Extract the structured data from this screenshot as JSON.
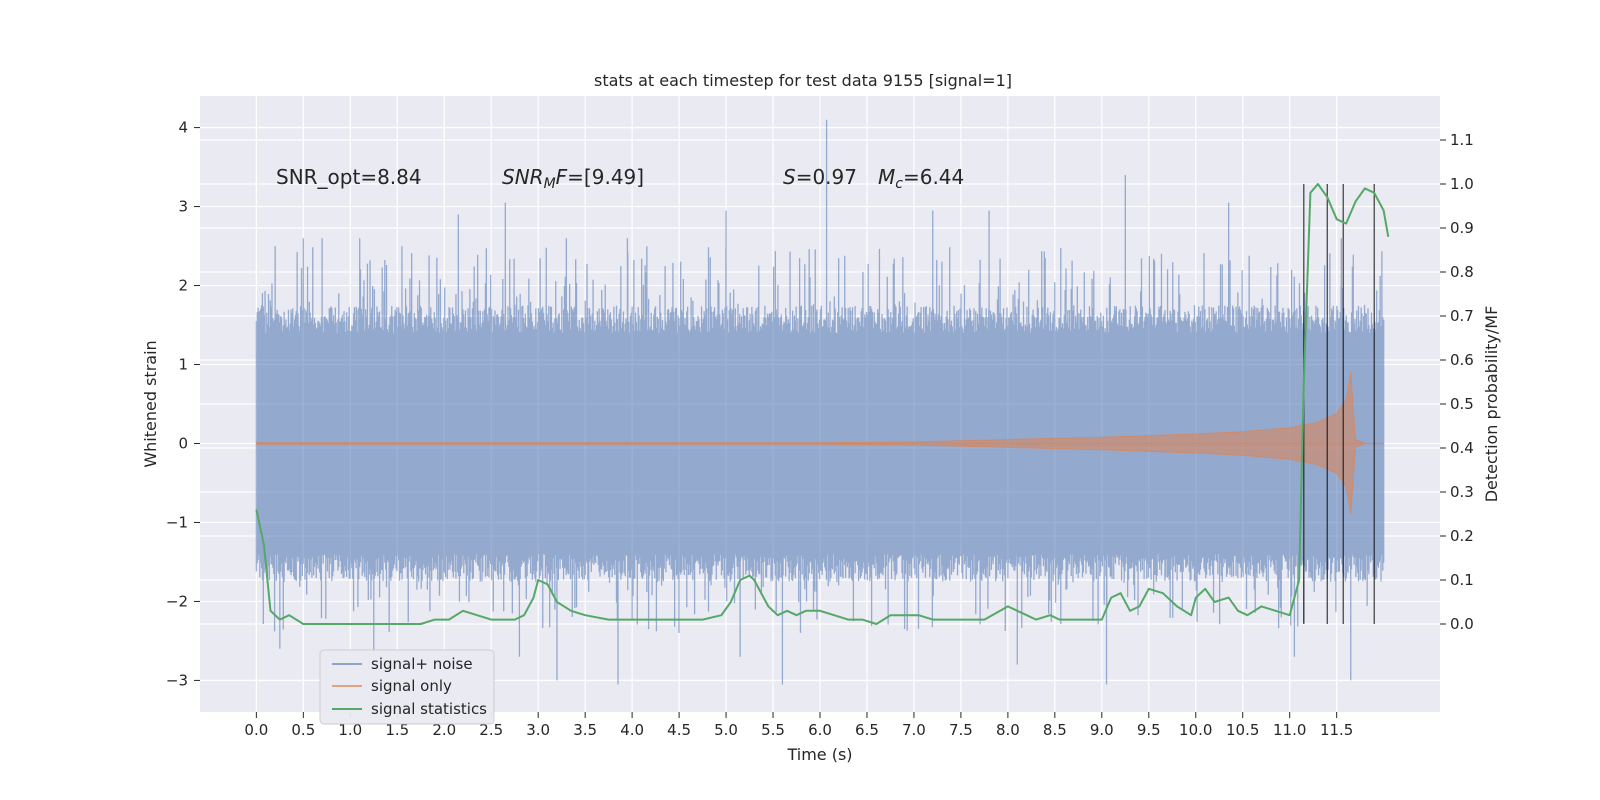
{
  "chart_data": {
    "type": "line",
    "title": "stats at each timestep for test data 9155 [signal=1]",
    "xlabel": "Time (s)",
    "ylabel_left": "Whitened strain",
    "ylabel_right": "Detection probability/MF",
    "xlim": [
      -0.6,
      12.6
    ],
    "ylim_left": [
      -3.4,
      4.4
    ],
    "ylim_right": [
      -0.2,
      1.2
    ],
    "x_ticks": [
      "0.0",
      "0.5",
      "1.0",
      "1.5",
      "2.0",
      "2.5",
      "3.0",
      "3.5",
      "4.0",
      "4.5",
      "5.0",
      "5.5",
      "6.0",
      "6.5",
      "7.0",
      "7.5",
      "8.0",
      "8.5",
      "9.0",
      "9.5",
      "10.0",
      "10.5",
      "11.0",
      "11.5"
    ],
    "y_ticks_left": [
      "−3",
      "−2",
      "−1",
      "0",
      "1",
      "2",
      "3",
      "4"
    ],
    "y_ticks_right": [
      "0.0",
      "0.1",
      "0.2",
      "0.3",
      "0.4",
      "0.5",
      "0.6",
      "0.7",
      "0.8",
      "0.9",
      "1.0",
      "1.1"
    ],
    "grid": true,
    "legend_placement": "lower-left",
    "annotations": {
      "snr_opt": "SNR_opt=8.84",
      "snr_mf_label": "SNR",
      "snr_mf_sub": "M",
      "snr_mf_f": "F",
      "snr_mf_value": "=[9.49]",
      "s_label": "S",
      "s_value": "=0.97",
      "mc_label": "M",
      "mc_sub": "c",
      "mc_value": "=6.44"
    },
    "series": [
      {
        "name": "signal+ noise",
        "color": "#4c72b0",
        "x_range": [
          0.0,
          12.0
        ],
        "envelope_typical": [
          -1.6,
          1.6
        ],
        "peaks": [
          {
            "x": 0.2,
            "y": 2.5
          },
          {
            "x": 0.5,
            "y": 2.6
          },
          {
            "x": 0.7,
            "y": 2.6
          },
          {
            "x": 1.1,
            "y": 2.6
          },
          {
            "x": 1.55,
            "y": 2.5
          },
          {
            "x": 2.15,
            "y": 2.9
          },
          {
            "x": 2.65,
            "y": 3.05
          },
          {
            "x": 3.3,
            "y": 2.6
          },
          {
            "x": 3.95,
            "y": 2.6
          },
          {
            "x": 5.0,
            "y": 2.95
          },
          {
            "x": 6.07,
            "y": 4.1
          },
          {
            "x": 7.2,
            "y": 2.95
          },
          {
            "x": 7.8,
            "y": 2.95
          },
          {
            "x": 9.25,
            "y": 3.4
          },
          {
            "x": 10.35,
            "y": 3.05
          },
          {
            "x": 11.55,
            "y": 2.6
          }
        ],
        "troughs": [
          {
            "x": 0.25,
            "y": -2.6
          },
          {
            "x": 1.25,
            "y": -2.65
          },
          {
            "x": 2.8,
            "y": -2.7
          },
          {
            "x": 3.2,
            "y": -3.0
          },
          {
            "x": 3.85,
            "y": -3.05
          },
          {
            "x": 5.15,
            "y": -2.7
          },
          {
            "x": 5.6,
            "y": -3.05
          },
          {
            "x": 8.1,
            "y": -2.8
          },
          {
            "x": 9.05,
            "y": -3.05
          },
          {
            "x": 11.05,
            "y": -2.7
          },
          {
            "x": 11.65,
            "y": -3.0
          }
        ]
      },
      {
        "name": "signal only",
        "color": "#dd8452",
        "x": [
          0.0,
          2.0,
          4.0,
          6.0,
          7.0,
          8.0,
          9.0,
          10.0,
          10.5,
          11.0,
          11.3,
          11.5,
          11.6,
          11.65,
          11.7,
          11.8,
          12.0
        ],
        "upper": [
          0.01,
          0.01,
          0.01,
          0.01,
          0.02,
          0.05,
          0.08,
          0.12,
          0.15,
          0.2,
          0.27,
          0.38,
          0.55,
          0.9,
          0.05,
          0.0,
          0.0
        ],
        "lower": [
          -0.01,
          -0.01,
          -0.01,
          -0.01,
          -0.02,
          -0.05,
          -0.08,
          -0.12,
          -0.15,
          -0.2,
          -0.27,
          -0.38,
          -0.55,
          -0.9,
          -0.05,
          0.0,
          0.0
        ]
      },
      {
        "name": "signal statistics",
        "color": "#55a868",
        "x": [
          0.0,
          0.08,
          0.15,
          0.25,
          0.35,
          0.5,
          0.6,
          0.75,
          1.0,
          1.25,
          1.5,
          1.75,
          1.9,
          2.05,
          2.2,
          2.35,
          2.5,
          2.75,
          2.85,
          2.95,
          3.0,
          3.1,
          3.2,
          3.35,
          3.5,
          3.75,
          4.0,
          4.25,
          4.5,
          4.75,
          4.95,
          5.05,
          5.15,
          5.25,
          5.3,
          5.45,
          5.55,
          5.65,
          5.75,
          5.85,
          6.0,
          6.15,
          6.3,
          6.45,
          6.6,
          6.75,
          6.9,
          7.05,
          7.2,
          7.35,
          7.5,
          7.75,
          8.0,
          8.1,
          8.2,
          8.3,
          8.45,
          8.55,
          8.7,
          8.85,
          9.0,
          9.1,
          9.2,
          9.3,
          9.4,
          9.5,
          9.65,
          9.8,
          9.95,
          10.0,
          10.1,
          10.2,
          10.35,
          10.45,
          10.55,
          10.7,
          10.85,
          11.0,
          11.1,
          11.15,
          11.22,
          11.3,
          11.4,
          11.5,
          11.6,
          11.7,
          11.8,
          11.9,
          12.0,
          12.05
        ],
        "y": [
          0.26,
          0.18,
          0.03,
          0.01,
          0.02,
          0.0,
          0.0,
          0.0,
          0.0,
          0.0,
          0.0,
          0.0,
          0.01,
          0.01,
          0.03,
          0.02,
          0.01,
          0.01,
          0.02,
          0.06,
          0.1,
          0.09,
          0.05,
          0.03,
          0.02,
          0.01,
          0.01,
          0.01,
          0.01,
          0.01,
          0.02,
          0.05,
          0.1,
          0.11,
          0.1,
          0.04,
          0.02,
          0.03,
          0.02,
          0.03,
          0.03,
          0.02,
          0.01,
          0.01,
          0.0,
          0.02,
          0.02,
          0.02,
          0.01,
          0.01,
          0.01,
          0.01,
          0.04,
          0.03,
          0.02,
          0.01,
          0.02,
          0.01,
          0.01,
          0.01,
          0.01,
          0.06,
          0.07,
          0.03,
          0.04,
          0.08,
          0.07,
          0.04,
          0.02,
          0.06,
          0.08,
          0.05,
          0.06,
          0.03,
          0.02,
          0.04,
          0.03,
          0.02,
          0.1,
          0.55,
          0.98,
          1.0,
          0.97,
          0.92,
          0.91,
          0.96,
          0.99,
          0.98,
          0.94,
          0.88
        ]
      }
    ],
    "vertical_lines": {
      "color": "#000000",
      "x": [
        11.15,
        11.4,
        11.57,
        11.9
      ],
      "y_range_right": [
        0.0,
        1.0
      ]
    }
  }
}
